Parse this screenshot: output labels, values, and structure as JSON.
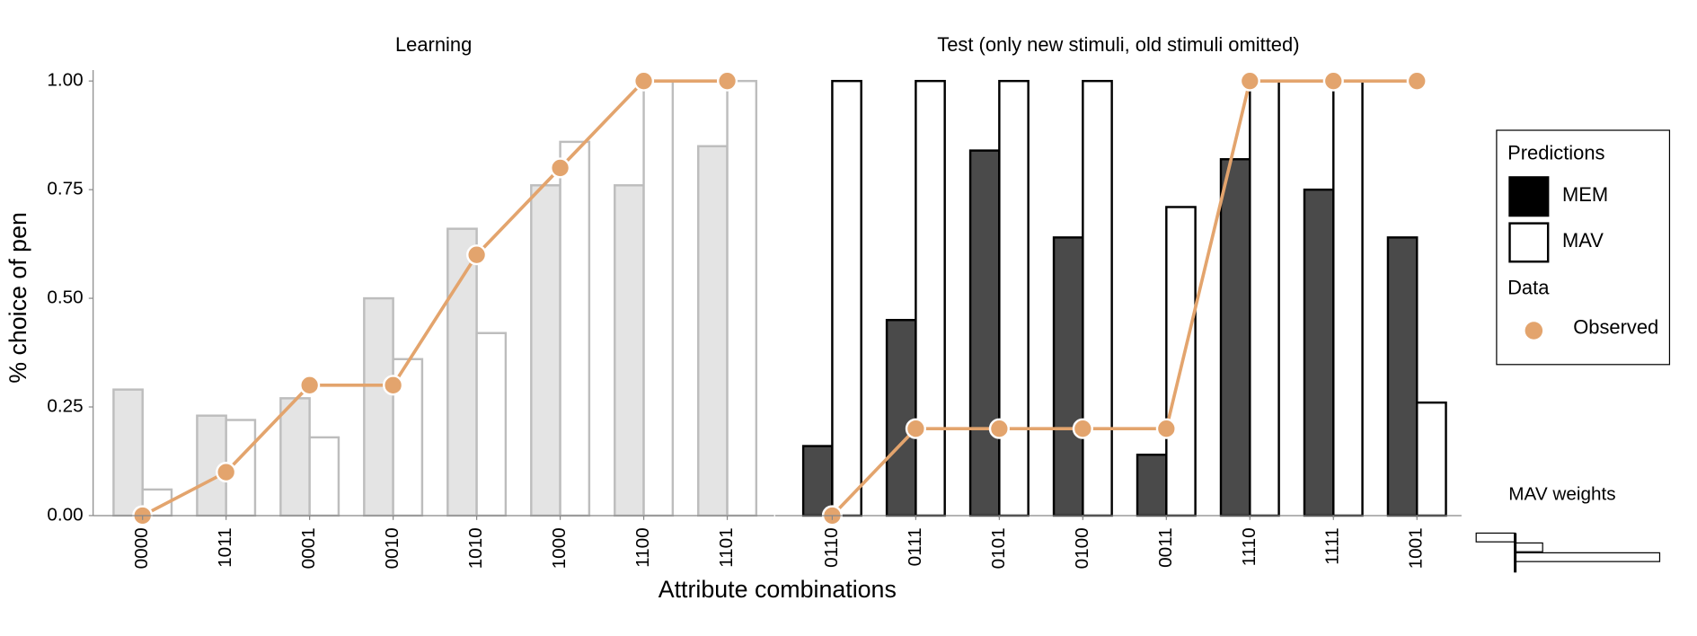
{
  "chart_data": {
    "type": "bar",
    "ylabel": "% choice of pen",
    "xlabel": "Attribute combinations",
    "ylim": [
      0,
      1
    ],
    "yticks": [
      {
        "value": 0,
        "label": "0.00"
      },
      {
        "value": 0.25,
        "label": "0.25"
      },
      {
        "value": 0.5,
        "label": "0.50"
      },
      {
        "value": 0.75,
        "label": "0.75"
      },
      {
        "value": 1,
        "label": "1.00"
      }
    ],
    "panels": [
      {
        "title": "Learning",
        "categories": [
          "0000",
          "1011",
          "0001",
          "0010",
          "1010",
          "1000",
          "1100",
          "1101"
        ],
        "series": [
          {
            "name": "MEM",
            "color": "#e4e4e4",
            "stroke": "#bdbdbd",
            "values": [
              0.29,
              0.23,
              0.27,
              0.5,
              0.66,
              0.76,
              0.76,
              0.85
            ]
          },
          {
            "name": "MAV",
            "color": "#ffffff",
            "stroke": "#bdbdbd",
            "values": [
              0.06,
              0.22,
              0.18,
              0.36,
              0.42,
              0.86,
              1.0,
              1.0
            ]
          },
          {
            "name": "Observed",
            "type": "line",
            "color": "#e3a46d",
            "values": [
              0,
              0.1,
              0.3,
              0.3,
              0.6,
              0.8,
              1.0,
              1.0
            ]
          }
        ]
      },
      {
        "title": "Test (only new stimuli, old stimuli omitted)",
        "categories": [
          "0110",
          "0111",
          "0101",
          "0100",
          "0011",
          "1110",
          "1111",
          "1001"
        ],
        "series": [
          {
            "name": "MEM",
            "color": "#4a4a4a",
            "stroke": "#000000",
            "values": [
              0.16,
              0.45,
              0.84,
              0.64,
              0.14,
              0.82,
              0.75,
              0.64
            ]
          },
          {
            "name": "MAV",
            "color": "#ffffff",
            "stroke": "#000000",
            "values": [
              1.0,
              1.0,
              1.0,
              1.0,
              0.71,
              1.0,
              1.0,
              0.26
            ]
          },
          {
            "name": "Observed",
            "type": "line",
            "color": "#e3a46d",
            "values": [
              0,
              0.2,
              0.2,
              0.2,
              0.2,
              1.0,
              1.0,
              1.0
            ]
          }
        ]
      }
    ],
    "legend": {
      "titles": [
        "Predictions",
        "Data"
      ],
      "colors": [
        "#000000",
        "#ffffff"
      ],
      "position": "right"
    },
    "weights": {
      "title": "MAV weights",
      "values": [
        -0.27,
        0.19,
        1.0,
        0.0
      ]
    }
  }
}
